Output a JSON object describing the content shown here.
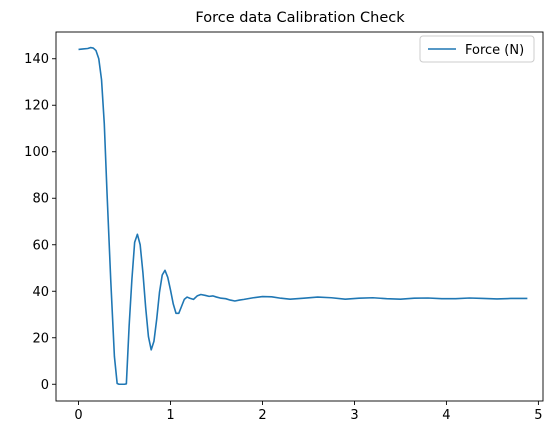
{
  "chart_data": {
    "type": "line",
    "title": "Force data Calibration Check",
    "xlabel": "",
    "ylabel": "",
    "xlim": [
      -0.245,
      5.05
    ],
    "ylim": [
      -7.2,
      151.5
    ],
    "xticks": [
      0,
      1,
      2,
      3,
      4,
      5
    ],
    "yticks": [
      0,
      20,
      40,
      60,
      80,
      100,
      120,
      140
    ],
    "grid": false,
    "legend_position": "upper right",
    "series": [
      {
        "name": "Force (N)",
        "color": "#1f77b4",
        "x": [
          0.0,
          0.05,
          0.1,
          0.13,
          0.16,
          0.19,
          0.22,
          0.25,
          0.28,
          0.31,
          0.35,
          0.39,
          0.42,
          0.44,
          0.45,
          0.46,
          0.5,
          0.52,
          0.55,
          0.58,
          0.61,
          0.64,
          0.67,
          0.7,
          0.73,
          0.76,
          0.79,
          0.82,
          0.85,
          0.88,
          0.91,
          0.94,
          0.97,
          1.0,
          1.03,
          1.06,
          1.09,
          1.12,
          1.15,
          1.18,
          1.21,
          1.25,
          1.29,
          1.33,
          1.38,
          1.42,
          1.46,
          1.5,
          1.55,
          1.6,
          1.65,
          1.7,
          1.75,
          1.8,
          1.9,
          2.0,
          2.1,
          2.2,
          2.3,
          2.45,
          2.6,
          2.75,
          2.9,
          3.05,
          3.2,
          3.35,
          3.5,
          3.65,
          3.8,
          3.95,
          4.1,
          4.25,
          4.4,
          4.55,
          4.7,
          4.88
        ],
        "values": [
          144,
          144.2,
          144.4,
          144.8,
          144.6,
          143.5,
          140.0,
          131.0,
          112.0,
          82.0,
          45.0,
          12.0,
          0.3,
          0.0,
          0.0,
          0.0,
          0.0,
          0.2,
          25.0,
          45.0,
          61.0,
          64.5,
          60.0,
          48.0,
          33.0,
          20.5,
          14.8,
          18.5,
          28.0,
          39.5,
          47.0,
          49.0,
          46.0,
          40.5,
          34.5,
          30.5,
          30.5,
          33.5,
          36.5,
          37.5,
          37.0,
          36.5,
          38.0,
          38.6,
          38.2,
          37.8,
          38.0,
          37.5,
          37.0,
          36.8,
          36.2,
          35.8,
          36.2,
          36.5,
          37.2,
          37.7,
          37.6,
          37.0,
          36.6,
          37.0,
          37.5,
          37.2,
          36.6,
          37.0,
          37.2,
          36.8,
          36.6,
          37.0,
          37.1,
          36.8,
          36.8,
          37.1,
          36.9,
          36.7,
          36.9,
          36.9
        ]
      }
    ]
  }
}
